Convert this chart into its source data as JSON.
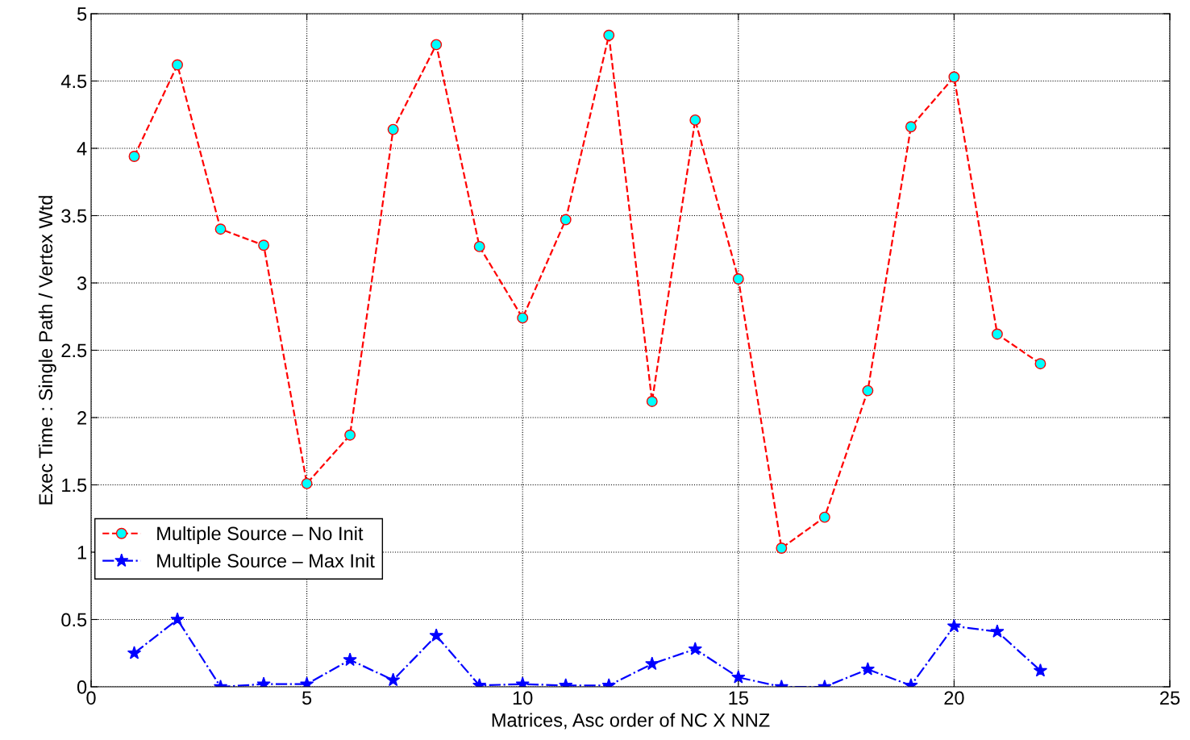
{
  "chart_data": {
    "type": "line",
    "xlabel": "Matrices, Asc order of NC X NNZ",
    "ylabel": "Exec Time : Single Path / Vertex Wtd",
    "x": [
      1,
      2,
      3,
      4,
      5,
      6,
      7,
      8,
      9,
      10,
      11,
      12,
      13,
      14,
      15,
      16,
      17,
      18,
      19,
      20,
      21,
      22
    ],
    "series": [
      {
        "name": "Multiple Source – No Init",
        "color": "#ff0000",
        "marker": "circle",
        "line_style": "dashed",
        "values": [
          3.94,
          4.62,
          3.4,
          3.28,
          1.51,
          1.87,
          4.14,
          4.77,
          3.27,
          2.74,
          3.47,
          4.84,
          2.12,
          4.21,
          3.03,
          1.03,
          1.26,
          2.2,
          4.16,
          4.53,
          2.62,
          2.4
        ]
      },
      {
        "name": "Multiple Source – Max Init",
        "color": "#0000ff",
        "marker": "star",
        "line_style": "dashdot",
        "values": [
          0.25,
          0.5,
          0.0,
          0.02,
          0.02,
          0.2,
          0.05,
          0.38,
          0.01,
          0.02,
          0.01,
          0.01,
          0.17,
          0.28,
          0.07,
          0.0,
          0.0,
          0.13,
          0.01,
          0.45,
          0.41,
          0.12
        ]
      }
    ],
    "xlim": [
      0,
      25
    ],
    "xticks": [
      0,
      5,
      10,
      15,
      20,
      25
    ],
    "ylim": [
      0,
      5
    ],
    "yticks": [
      0,
      0.5,
      1,
      1.5,
      2,
      2.5,
      3,
      3.5,
      4,
      4.5,
      5
    ],
    "grid": true,
    "legend": "left"
  }
}
